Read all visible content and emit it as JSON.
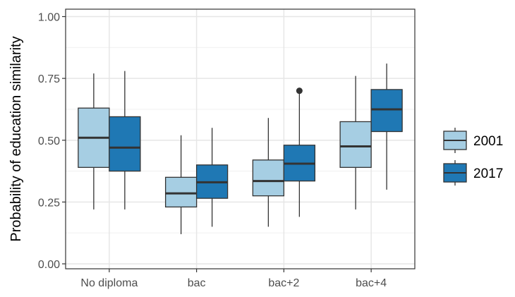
{
  "chart_data": {
    "type": "boxplot",
    "title": "",
    "xlabel": "",
    "ylabel": "Probability of education similarity",
    "ylim": [
      -0.02,
      1.03
    ],
    "yticks": [
      0.0,
      0.25,
      0.5,
      0.75,
      1.0
    ],
    "ytick_labels": [
      "0.00",
      "0.25",
      "0.50",
      "0.75",
      "1.00"
    ],
    "grid": true,
    "legend_position": "right",
    "categories": [
      "No diploma",
      "bac",
      "bac+2",
      "bac+4"
    ],
    "series": [
      {
        "name": "2001",
        "color": "#a6cee3",
        "boxes": [
          {
            "min": 0.22,
            "q1": 0.39,
            "median": 0.51,
            "q3": 0.63,
            "max": 0.77,
            "outliers": []
          },
          {
            "min": 0.12,
            "q1": 0.23,
            "median": 0.285,
            "q3": 0.35,
            "max": 0.52,
            "outliers": []
          },
          {
            "min": 0.15,
            "q1": 0.275,
            "median": 0.335,
            "q3": 0.42,
            "max": 0.59,
            "outliers": []
          },
          {
            "min": 0.22,
            "q1": 0.39,
            "median": 0.475,
            "q3": 0.575,
            "max": 0.76,
            "outliers": []
          }
        ]
      },
      {
        "name": "2017",
        "color": "#1f78b4",
        "boxes": [
          {
            "min": 0.22,
            "q1": 0.375,
            "median": 0.47,
            "q3": 0.595,
            "max": 0.78,
            "outliers": []
          },
          {
            "min": 0.15,
            "q1": 0.265,
            "median": 0.33,
            "q3": 0.4,
            "max": 0.55,
            "outliers": []
          },
          {
            "min": 0.19,
            "q1": 0.335,
            "median": 0.405,
            "q3": 0.48,
            "max": 0.69,
            "outliers": [
              0.7
            ]
          },
          {
            "min": 0.3,
            "q1": 0.535,
            "median": 0.625,
            "q3": 0.705,
            "max": 0.81,
            "outliers": []
          }
        ]
      }
    ]
  }
}
